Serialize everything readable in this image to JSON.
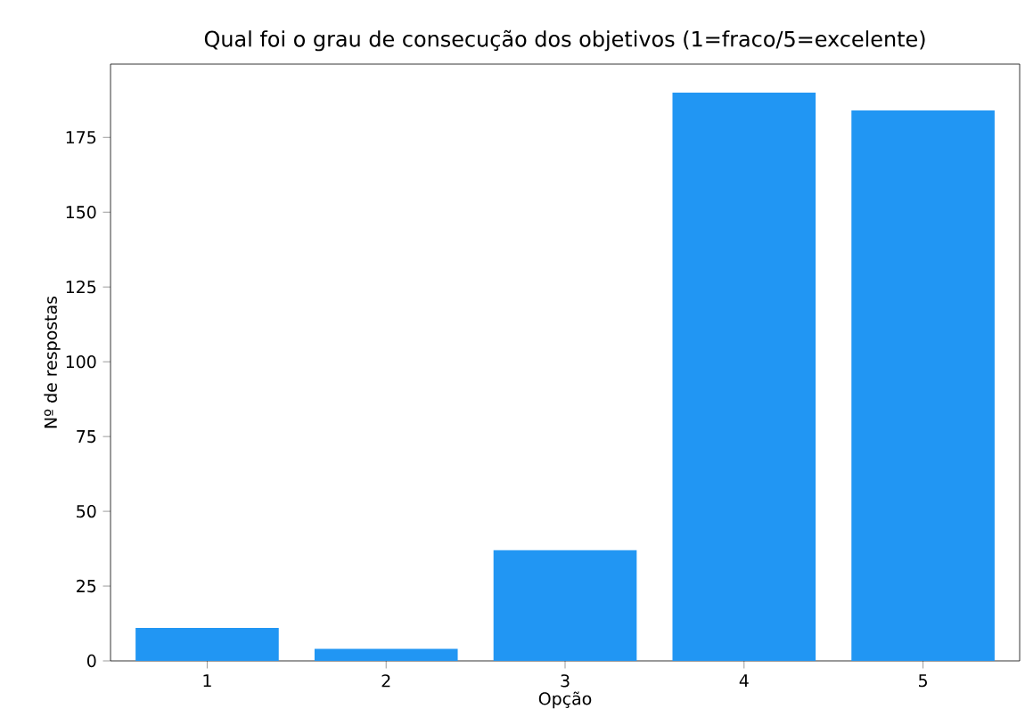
{
  "chart_data": {
    "type": "bar",
    "title": "Qual foi o grau de consecução dos objetivos (1=fraco/5=excelente)",
    "xlabel": "Opção",
    "ylabel": "Nº de respostas",
    "categories": [
      "1",
      "2",
      "3",
      "4",
      "5"
    ],
    "values": [
      11,
      4,
      37,
      190,
      184
    ],
    "color": "#2196f3",
    "ylim": [
      0,
      199.5
    ],
    "yticks": [
      0,
      25,
      50,
      75,
      100,
      125,
      150,
      175
    ]
  }
}
